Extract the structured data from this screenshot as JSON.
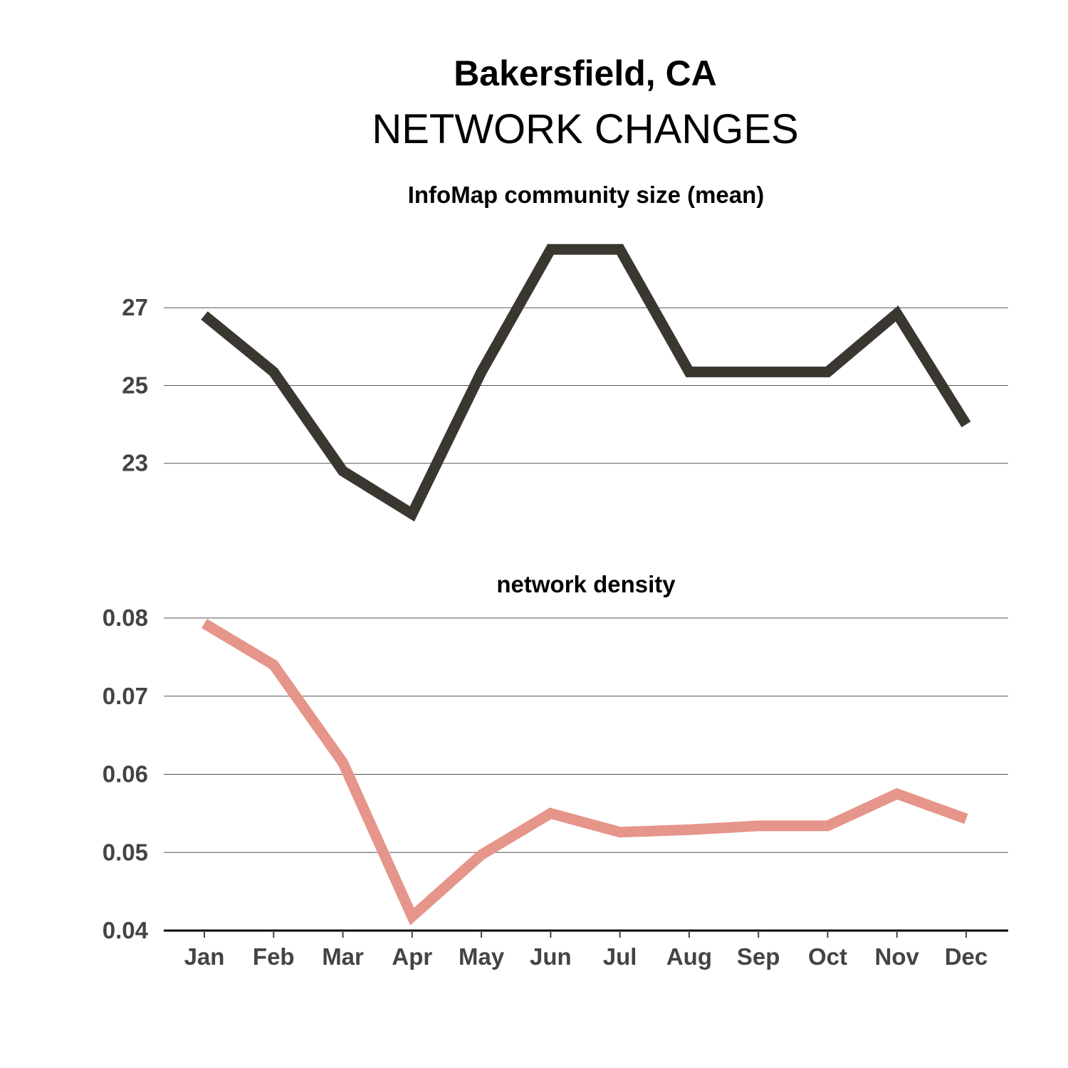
{
  "figure": {
    "title": "Bakersfield, CA",
    "subtitle": "NETWORK CHANGES"
  },
  "chart_data": [
    {
      "type": "line",
      "title": "InfoMap community size (mean)",
      "xlabel": "",
      "ylabel": "",
      "categories": [
        "Jan",
        "Feb",
        "Mar",
        "Apr",
        "May",
        "Jun",
        "Jul",
        "Aug",
        "Sep",
        "Oct",
        "Nov",
        "Dec"
      ],
      "series": [
        {
          "values": [
            26.8,
            25.35,
            22.8,
            21.7,
            25.35,
            28.5,
            28.5,
            25.35,
            25.35,
            25.35,
            26.85,
            24.0
          ],
          "color": "#3a3731"
        }
      ],
      "yticks": [
        23,
        25,
        27
      ],
      "ylim": [
        21.0,
        29.2
      ],
      "grid": true,
      "xaxis_shown": false
    },
    {
      "type": "line",
      "title": "network density",
      "xlabel": "",
      "ylabel": "",
      "categories": [
        "Jan",
        "Feb",
        "Mar",
        "Apr",
        "May",
        "Jun",
        "Jul",
        "Aug",
        "Sep",
        "Oct",
        "Nov",
        "Dec"
      ],
      "series": [
        {
          "values": [
            0.0793,
            0.074,
            0.0615,
            0.0418,
            0.0497,
            0.055,
            0.0526,
            0.0529,
            0.0534,
            0.0534,
            0.0575,
            0.0543
          ],
          "color": "#e6958a"
        }
      ],
      "yticks": [
        0.04,
        0.05,
        0.06,
        0.07,
        0.08
      ],
      "ytick_labels": [
        "0.04",
        "0.05",
        "0.06",
        "0.07",
        "0.08"
      ],
      "ylim": [
        0.04,
        0.08
      ],
      "grid": true,
      "xaxis_shown": true
    }
  ]
}
